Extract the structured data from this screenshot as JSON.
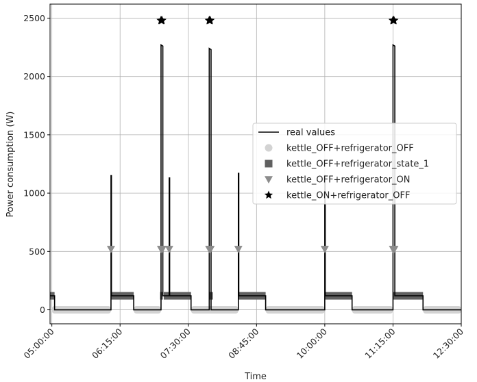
{
  "chart_data": {
    "type": "line",
    "title": "",
    "xlabel": "Time",
    "ylabel": "Power consumption (W)",
    "xlim": [
      "04:58:00",
      "12:30:00"
    ],
    "ylim": [
      -120,
      2620
    ],
    "x_ticks": [
      "05:00:00",
      "06:15:00",
      "07:30:00",
      "08:45:00",
      "10:00:00",
      "11:15:00",
      "12:30:00"
    ],
    "y_ticks": [
      0,
      500,
      1000,
      1500,
      2000,
      2500
    ],
    "grid": true,
    "legend_position": "center-right",
    "colors": {
      "real": "#000000",
      "off_off": "#d3d3d3",
      "state_1": "#606060",
      "ref_on": "#8c8c8c",
      "kettle_on": "#000000"
    },
    "series": [
      {
        "name": "real values",
        "kind": "line",
        "points": [
          [
            "04:58:00",
            120
          ],
          [
            "05:03:00",
            120
          ],
          [
            "05:03:00",
            0
          ],
          [
            "06:05:00",
            0
          ],
          [
            "06:05:00",
            1150
          ],
          [
            "06:05:30",
            1150
          ],
          [
            "06:05:30",
            120
          ],
          [
            "06:30:00",
            120
          ],
          [
            "06:30:00",
            0
          ],
          [
            "07:00:00",
            0
          ],
          [
            "07:00:00",
            2270
          ],
          [
            "07:02:00",
            2260
          ],
          [
            "07:02:00",
            120
          ],
          [
            "07:09:00",
            120
          ],
          [
            "07:09:00",
            1130
          ],
          [
            "07:09:30",
            1130
          ],
          [
            "07:09:30",
            120
          ],
          [
            "07:33:00",
            120
          ],
          [
            "07:33:00",
            0
          ],
          [
            "07:53:00",
            0
          ],
          [
            "07:53:00",
            2240
          ],
          [
            "07:55:00",
            2230
          ],
          [
            "07:55:00",
            0
          ],
          [
            "08:25:00",
            0
          ],
          [
            "08:25:00",
            1170
          ],
          [
            "08:25:30",
            1170
          ],
          [
            "08:25:30",
            120
          ],
          [
            "08:55:00",
            120
          ],
          [
            "08:55:00",
            0
          ],
          [
            "10:00:00",
            0
          ],
          [
            "10:00:00",
            1150
          ],
          [
            "10:00:30",
            1150
          ],
          [
            "10:00:30",
            120
          ],
          [
            "10:30:00",
            120
          ],
          [
            "10:30:00",
            0
          ],
          [
            "11:15:00",
            0
          ],
          [
            "11:15:00",
            2270
          ],
          [
            "11:17:00",
            2260
          ],
          [
            "11:17:00",
            120
          ],
          [
            "11:48:00",
            120
          ],
          [
            "11:48:00",
            0
          ],
          [
            "12:30:00",
            0
          ]
        ]
      },
      {
        "name": "kettle_OFF+refrigerator_OFF",
        "kind": "segments",
        "value": 0,
        "intervals": [
          [
            "05:00:00",
            "06:05:00"
          ],
          [
            "06:30:00",
            "07:00:00"
          ],
          [
            "07:33:00",
            "08:25:00"
          ],
          [
            "08:55:00",
            "10:00:00"
          ],
          [
            "10:30:00",
            "11:15:00"
          ],
          [
            "11:48:00",
            "12:30:00"
          ]
        ]
      },
      {
        "name": "kettle_OFF+refrigerator_state_1",
        "kind": "segments",
        "value": 120,
        "intervals": [
          [
            "04:58:00",
            "05:03:00"
          ],
          [
            "06:05:00",
            "06:30:00"
          ],
          [
            "06:59:00",
            "07:02:00"
          ],
          [
            "07:03:00",
            "07:33:00"
          ],
          [
            "07:53:00",
            "07:57:00"
          ],
          [
            "08:25:00",
            "08:55:00"
          ],
          [
            "10:00:00",
            "10:30:00"
          ],
          [
            "11:15:00",
            "11:48:00"
          ]
        ]
      },
      {
        "name": "kettle_OFF+refrigerator_ON",
        "kind": "markers",
        "value": 520,
        "x": [
          "06:05:00",
          "07:00:00",
          "07:01:30",
          "07:09:00",
          "07:53:00",
          "07:54:30",
          "08:25:00",
          "10:00:00",
          "11:15:00",
          "11:16:30"
        ]
      },
      {
        "name": "kettle_ON+refrigerator_OFF",
        "kind": "markers",
        "value": 2480,
        "x": [
          "07:00:00",
          "07:01:00",
          "07:53:00",
          "07:54:00",
          "11:15:00",
          "11:16:00"
        ]
      }
    ]
  }
}
